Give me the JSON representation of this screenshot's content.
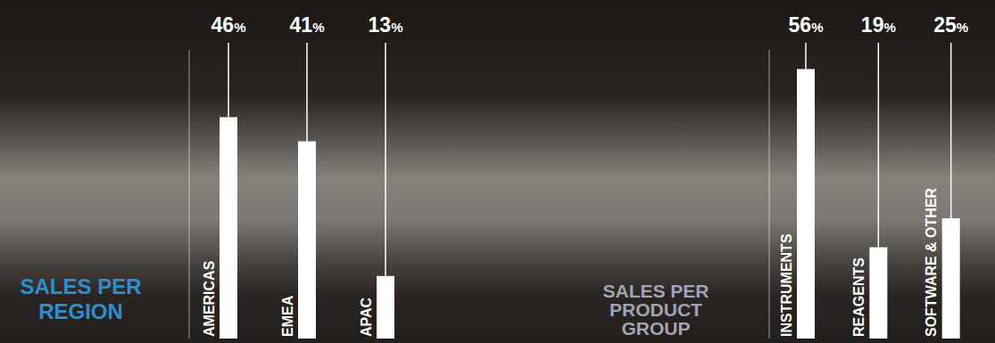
{
  "chart_data": [
    {
      "type": "bar",
      "title": "SALES PER REGION",
      "categories": [
        "AMERICAS",
        "EMEA",
        "APAC"
      ],
      "values": [
        46,
        41,
        13
      ],
      "value_labels": [
        "46%",
        "41%",
        "13%"
      ],
      "color": "#ffffff",
      "ylim": [
        0,
        60
      ],
      "data_labels": true,
      "tick_labels": "x",
      "grid": false
    },
    {
      "type": "bar",
      "title": "SALES PER PRODUCT GROUP",
      "categories": [
        "INSTRUMENTS",
        "REAGENTS",
        "SOFTWARE & OTHER"
      ],
      "values": [
        56,
        19,
        25
      ],
      "value_labels": [
        "56%",
        "19%",
        "25%"
      ],
      "color": "#ffffff",
      "ylim": [
        0,
        60
      ],
      "data_labels": true,
      "tick_labels": "x",
      "grid": false
    }
  ]
}
